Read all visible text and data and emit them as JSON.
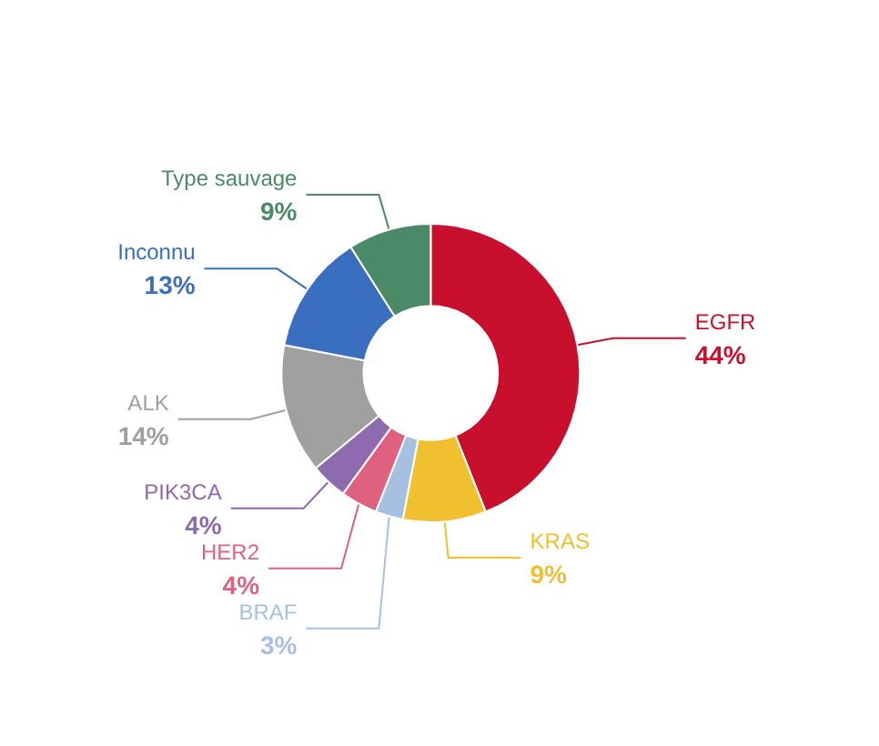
{
  "chart_data": {
    "type": "donut",
    "categories": [
      "EGFR",
      "KRAS",
      "BRAF",
      "HER2",
      "PIK3CA",
      "ALK",
      "Inconnu",
      "Type sauvage"
    ],
    "values": [
      44,
      9,
      3,
      4,
      4,
      14,
      13,
      9
    ],
    "value_labels": [
      "44%",
      "9%",
      "3%",
      "4%",
      "4%",
      "14%",
      "13%",
      "9%"
    ],
    "colors": [
      "#c8102e",
      "#f0c030",
      "#a8c0e0",
      "#e06080",
      "#8e6aae",
      "#a0a0a0",
      "#3a6fc0",
      "#4a8a68"
    ],
    "legend": false
  }
}
